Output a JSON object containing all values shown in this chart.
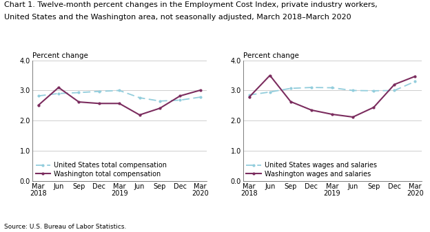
{
  "title_line1": "Chart 1. Twelve-month percent changes in the Employment Cost Index, private industry workers,",
  "title_line2": "United States and the Washington area, not seasonally adjusted, March 2018–March 2020",
  "source": "Source: U.S. Bureau of Labor Statistics.",
  "ylabel": "Percent change",
  "x_labels": [
    "Mar\n2018",
    "Jun",
    "Sep",
    "Dec",
    "Mar\n2019",
    "Jun",
    "Sep",
    "Dec",
    "Mar\n2020"
  ],
  "ylim": [
    0.0,
    4.0
  ],
  "yticks": [
    0.0,
    1.0,
    2.0,
    3.0,
    4.0
  ],
  "left_chart": {
    "us_total_comp": [
      2.82,
      2.9,
      2.93,
      2.97,
      3.0,
      2.76,
      2.65,
      2.68,
      2.78
    ],
    "wash_total_comp": [
      2.51,
      3.1,
      2.62,
      2.57,
      2.57,
      2.19,
      2.41,
      2.82,
      3.01
    ],
    "legend1": "United States total compensation",
    "legend2": "Washington total compensation"
  },
  "right_chart": {
    "us_wages_sal": [
      2.85,
      2.95,
      3.07,
      3.1,
      3.09,
      3.0,
      2.99,
      3.0,
      3.3
    ],
    "wash_wages_sal": [
      2.78,
      3.5,
      2.63,
      2.35,
      2.21,
      2.12,
      2.44,
      3.2,
      3.47
    ],
    "legend1": "United States wages and salaries",
    "legend2": "Washington wages and salaries"
  },
  "us_color": "#92CDDC",
  "wash_color": "#7B2C5E",
  "background_color": "#FFFFFF",
  "grid_color": "#BBBBBB",
  "title_fontsize": 8.0,
  "label_fontsize": 7.5,
  "tick_fontsize": 7.0,
  "legend_fontsize": 7.0
}
